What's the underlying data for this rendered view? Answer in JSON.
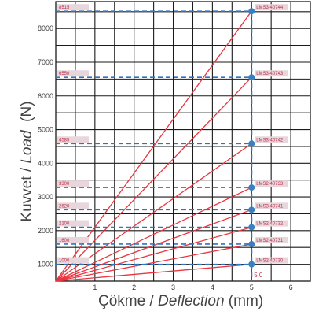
{
  "chart_data": {
    "type": "line",
    "xlabel_prefix": "Çökme / ",
    "xlabel_italic": "Deflection",
    "xlabel_suffix": " (mm)",
    "ylabel_prefix": "Kuvvet / ",
    "ylabel_italic": "Load",
    "ylabel_suffix": "  (N)",
    "xlim": [
      0,
      6.5
    ],
    "ylim": [
      500,
      8800
    ],
    "x_ticks": [
      "1",
      "2",
      "3",
      "4",
      "5",
      "6"
    ],
    "y_ticks": [
      "1000",
      "2000",
      "3000",
      "4000",
      "5000",
      "6000",
      "7000",
      "8000"
    ],
    "y_tick_values": [
      1000,
      2000,
      3000,
      4000,
      5000,
      6000,
      7000,
      8000
    ],
    "x_tick_values": [
      1,
      2,
      3,
      4,
      5,
      6
    ],
    "origin": [
      0,
      500
    ],
    "x_marker": 5,
    "x_marker_label": "5,0",
    "series": [
      {
        "name": "LMS3.40744",
        "load_at_5mm": 8515,
        "label": "8515"
      },
      {
        "name": "LMS3.40743",
        "load_at_5mm": 6550,
        "label": "6550"
      },
      {
        "name": "LMS3.40742",
        "load_at_5mm": 4585,
        "label": "4585"
      },
      {
        "name": "LMS2.40733",
        "load_at_5mm": 3280,
        "label": "3300"
      },
      {
        "name": "LMS3.40741",
        "load_at_5mm": 2620,
        "label": "2620"
      },
      {
        "name": "LMS2.40732",
        "load_at_5mm": 2100,
        "label": "2100"
      },
      {
        "name": "LMS2.40731",
        "load_at_5mm": 1600,
        "label": "1600"
      },
      {
        "name": "LMS2.40730",
        "load_at_5mm": 1000,
        "label": "1000"
      }
    ],
    "grid": true,
    "colors": {
      "line": "#e8353f",
      "dash": "#2f74c0",
      "marker": "#3a7fc0",
      "label_bg": "#e7d6dc",
      "label_text": "#c0304a",
      "grid": "#1a1a1a"
    }
  }
}
